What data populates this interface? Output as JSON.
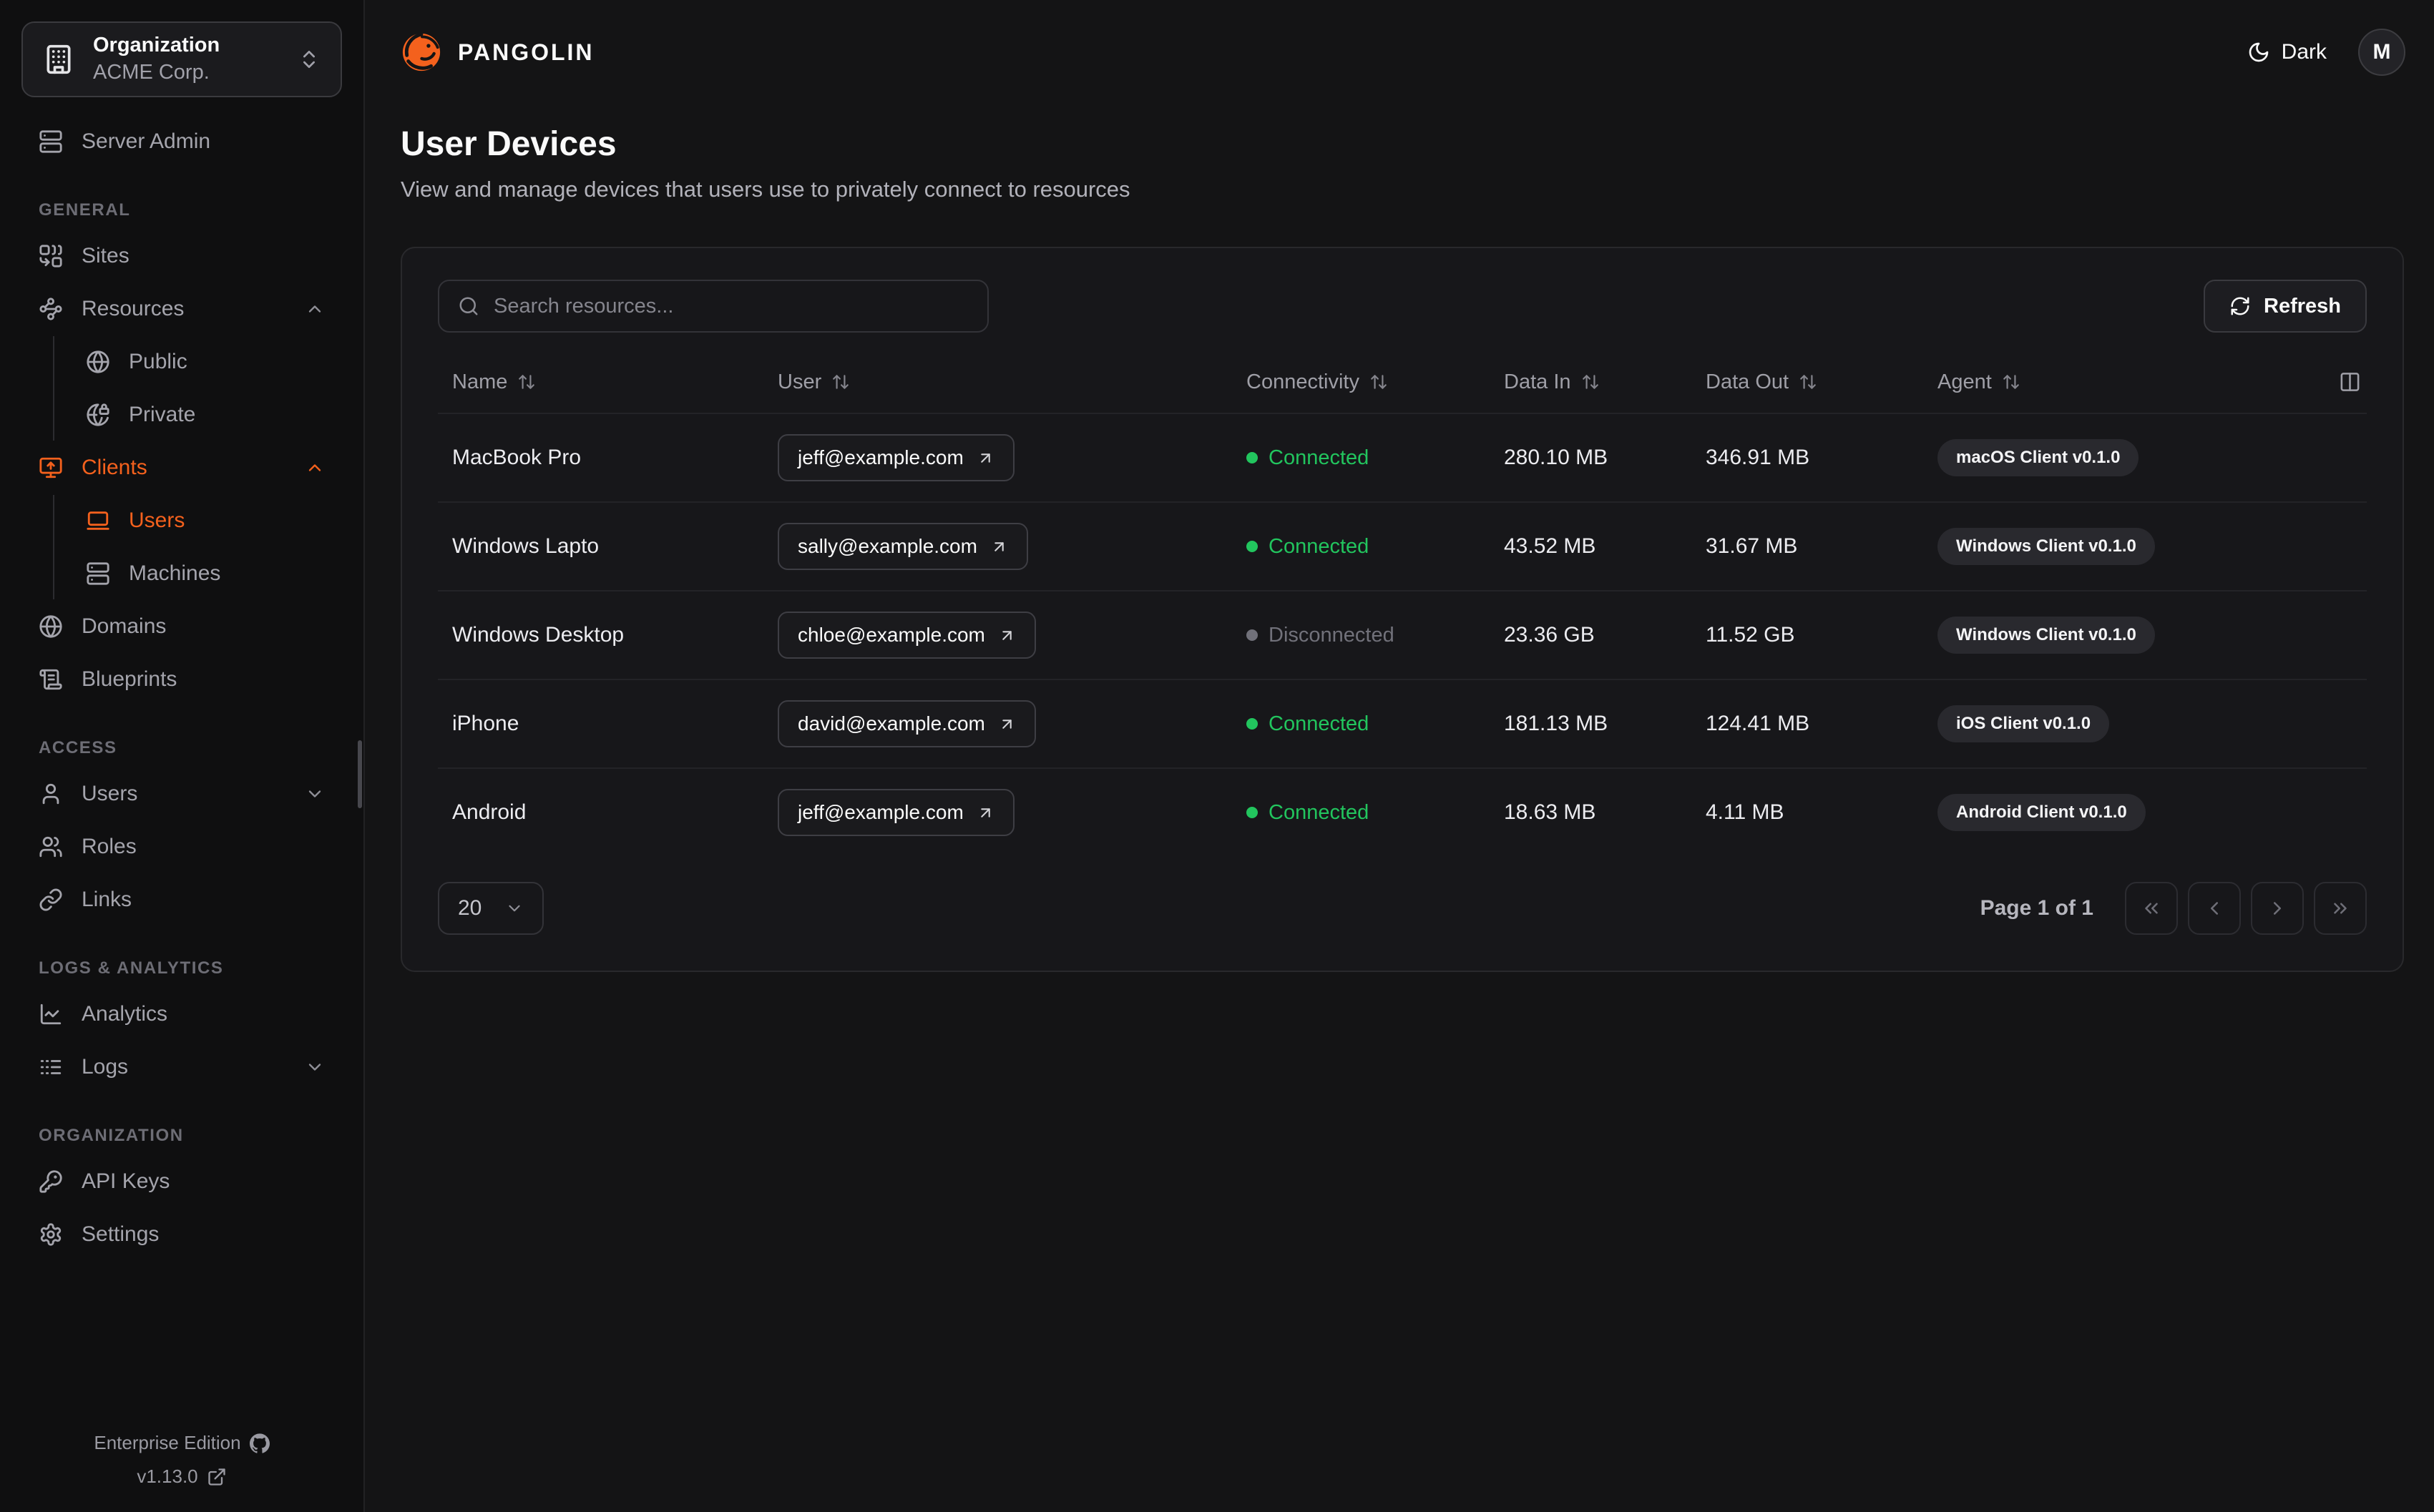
{
  "colors": {
    "accent": "#f4611d",
    "connected": "#22c55e",
    "disconnected": "#71717a"
  },
  "org_switcher": {
    "icon": "building",
    "label": "Organization",
    "value": "ACME Corp.",
    "chevron_icon": "chevrons-up-down"
  },
  "sidebar": {
    "groups": [
      {
        "items": [
          {
            "icon": "server",
            "label": "Server Admin"
          }
        ]
      },
      {
        "section": "GENERAL",
        "items": [
          {
            "icon": "combine",
            "label": "Sites"
          },
          {
            "icon": "waypoints",
            "label": "Resources",
            "chevron": "up",
            "children": [
              {
                "icon": "globe",
                "label": "Public"
              },
              {
                "icon": "globe-lock",
                "label": "Private"
              }
            ]
          },
          {
            "icon": "monitor-up",
            "label": "Clients",
            "chevron": "up",
            "active": true,
            "children": [
              {
                "icon": "laptop",
                "label": "Users",
                "active": true
              },
              {
                "icon": "server",
                "label": "Machines"
              }
            ]
          },
          {
            "icon": "globe",
            "label": "Domains"
          },
          {
            "icon": "scroll-text",
            "label": "Blueprints"
          }
        ]
      },
      {
        "section": "ACCESS",
        "items": [
          {
            "icon": "user",
            "label": "Users",
            "chevron": "down"
          },
          {
            "icon": "users",
            "label": "Roles"
          },
          {
            "icon": "link",
            "label": "Links"
          }
        ]
      },
      {
        "section": "LOGS & ANALYTICS",
        "items": [
          {
            "icon": "chart-line",
            "label": "Analytics"
          },
          {
            "icon": "logs",
            "label": "Logs",
            "chevron": "down"
          }
        ]
      },
      {
        "section": "ORGANIZATION",
        "items": [
          {
            "icon": "key",
            "label": "API Keys"
          },
          {
            "icon": "settings",
            "label": "Settings"
          }
        ]
      }
    ],
    "footer": {
      "edition": "Enterprise Edition",
      "edition_icon": "github",
      "version": "v1.13.0",
      "version_icon": "external-link"
    }
  },
  "header": {
    "brand": "PANGOLIN",
    "logo_icon": "pangolin-logo",
    "theme_icon": "moon",
    "theme_label": "Dark",
    "avatar_initial": "M"
  },
  "page": {
    "title": "User Devices",
    "subtitle": "View and manage devices that users use to privately connect to resources"
  },
  "toolbar": {
    "search_icon": "search",
    "search_placeholder": "Search resources...",
    "refresh_icon": "refresh-cw",
    "refresh_label": "Refresh",
    "columns_icon": "columns-2"
  },
  "table": {
    "sort_icon": "arrow-up-down",
    "user_link_icon": "arrow-up-right",
    "columns": [
      "Name",
      "User",
      "Connectivity",
      "Data In",
      "Data Out",
      "Agent"
    ],
    "rows": [
      {
        "name": "MacBook Pro",
        "user": "jeff@example.com",
        "connectivity": "Connected",
        "connected": true,
        "data_in": "280.10 MB",
        "data_out": "346.91 MB",
        "agent": "macOS Client v0.1.0"
      },
      {
        "name": "Windows Lapto",
        "user": "sally@example.com",
        "connectivity": "Connected",
        "connected": true,
        "data_in": "43.52 MB",
        "data_out": "31.67 MB",
        "agent": "Windows Client v0.1.0"
      },
      {
        "name": "Windows Desktop",
        "user": "chloe@example.com",
        "connectivity": "Disconnected",
        "connected": false,
        "data_in": "23.36 GB",
        "data_out": "11.52 GB",
        "agent": "Windows Client v0.1.0"
      },
      {
        "name": "iPhone",
        "user": "david@example.com",
        "connectivity": "Connected",
        "connected": true,
        "data_in": "181.13 MB",
        "data_out": "124.41 MB",
        "agent": "iOS Client v0.1.0"
      },
      {
        "name": "Android",
        "user": "jeff@example.com",
        "connectivity": "Connected",
        "connected": true,
        "data_in": "18.63 MB",
        "data_out": "4.11 MB",
        "agent": "Android Client v0.1.0"
      }
    ]
  },
  "pagination": {
    "page_size": "20",
    "page_label": "Page 1 of 1",
    "first_icon": "chevrons-left",
    "prev_icon": "chevron-left",
    "next_icon": "chevron-right",
    "last_icon": "chevrons-right"
  }
}
